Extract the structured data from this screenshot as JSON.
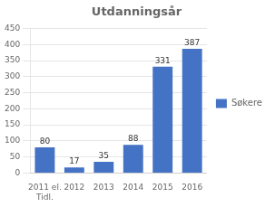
{
  "chart_data": {
    "type": "bar",
    "title": "Utdanningsår",
    "categories": [
      "2011 el.\nTidl.",
      "2012",
      "2013",
      "2014",
      "2015",
      "2016"
    ],
    "series": [
      {
        "name": "Søkere",
        "color": "#4472C4",
        "values": [
          80,
          17,
          35,
          88,
          331,
          387
        ]
      }
    ],
    "ylim": [
      0,
      450
    ],
    "yticks": [
      0,
      50,
      100,
      150,
      200,
      250,
      300,
      350,
      400,
      450
    ],
    "grid": true,
    "legend": "right",
    "data_labels": true
  }
}
